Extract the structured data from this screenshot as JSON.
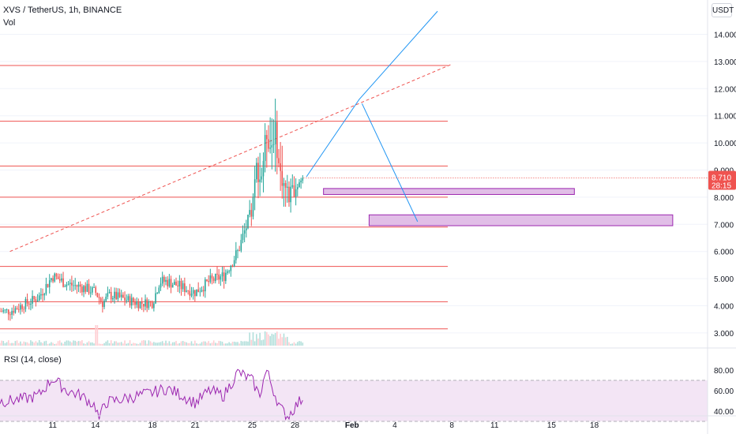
{
  "header": {
    "symbol": "XVS / TetherUS, 1h, BINANCE",
    "volume_label": "Vol",
    "currency_button": "USDT"
  },
  "rsi_title": "RSI (14, close)",
  "price_badge": {
    "price": "8.710",
    "countdown": "28:15",
    "color": "#ef5350"
  },
  "colors": {
    "up": "#26a69a",
    "down": "#ef5350",
    "horizontal_line": "#ef5350",
    "trendline": "#ef5350",
    "projection": "#2196f3",
    "zone_fill": "#e1bee7",
    "zone_border": "#9c27b0",
    "rsi_line": "#9c27b0",
    "rsi_band": "#f3e5f5"
  },
  "chart_data": [
    {
      "type": "candlestick",
      "title": "XVS / TetherUS, 1h, BINANCE",
      "y_axis": {
        "ticks": [
          "14.000",
          "13.000",
          "12.000",
          "11.000",
          "10.000",
          "9.000",
          "8.000",
          "7.000",
          "6.000",
          "5.000",
          "4.000",
          "3.000"
        ],
        "range": [
          2.6,
          14.95
        ]
      },
      "x_axis": {
        "ticks": [
          "11",
          "14",
          "18",
          "21",
          "25",
          "28",
          "Feb",
          "4",
          "8",
          "11",
          "15",
          "18"
        ]
      },
      "last_price": 8.71,
      "anchors": [
        [
          8,
          3.8
        ],
        [
          10,
          4.3
        ],
        [
          11,
          5.1
        ],
        [
          12,
          4.8
        ],
        [
          13,
          4.7
        ],
        [
          14,
          4.5
        ],
        [
          14.5,
          4.1
        ],
        [
          15,
          4.4
        ],
        [
          17,
          4.1
        ],
        [
          18,
          4.1
        ],
        [
          18.5,
          4.9
        ],
        [
          19,
          4.9
        ],
        [
          20,
          4.7
        ],
        [
          21,
          4.5
        ],
        [
          22,
          4.9
        ],
        [
          23,
          5.1
        ],
        [
          24,
          6.0
        ],
        [
          24.5,
          6.8
        ],
        [
          25,
          7.5
        ],
        [
          25.3,
          9.1
        ],
        [
          25.6,
          8.6
        ],
        [
          26,
          10.4
        ],
        [
          26.3,
          9.8
        ],
        [
          26.6,
          10.5
        ],
        [
          26.9,
          9.0
        ],
        [
          27.2,
          8.5
        ],
        [
          27.6,
          8.0
        ],
        [
          28,
          8.4
        ],
        [
          28.6,
          8.71
        ]
      ],
      "horizontal_levels": [
        12.85,
        10.8,
        9.15,
        8.0,
        6.9,
        5.45,
        4.15,
        3.15
      ],
      "trendline": {
        "from": {
          "day": 8,
          "price": 6.0
        },
        "to": {
          "day": 39.0,
          "price": 12.9
        }
      },
      "projection_path": [
        {
          "day": 28.8,
          "price": 8.75
        },
        {
          "day": 32.5,
          "price": 11.6
        },
        {
          "day": 38.0,
          "price": 14.85
        }
      ],
      "projection_down": [
        {
          "day": 32.7,
          "price": 11.45
        },
        {
          "day": 36.6,
          "price": 7.1
        }
      ],
      "zones": [
        {
          "from_day": 30.0,
          "to_day": 47.6,
          "low": 8.1,
          "high": 8.32
        },
        {
          "from_day": 33.2,
          "to_day": 54.5,
          "low": 6.95,
          "high": 7.35
        }
      ]
    },
    {
      "type": "line",
      "title": "RSI (14, close)",
      "y_axis": {
        "ticks": [
          "80.00",
          "60.00",
          "40.00"
        ],
        "range": [
          28,
          90
        ]
      },
      "band": [
        30,
        70
      ],
      "anchors": [
        [
          8,
          50
        ],
        [
          9,
          52
        ],
        [
          10,
          55
        ],
        [
          11,
          72
        ],
        [
          12,
          60
        ],
        [
          13,
          55
        ],
        [
          14,
          45
        ],
        [
          14.3,
          30
        ],
        [
          14.6,
          48
        ],
        [
          16,
          52
        ],
        [
          18,
          58
        ],
        [
          19,
          62
        ],
        [
          20,
          56
        ],
        [
          21,
          48
        ],
        [
          22,
          60
        ],
        [
          23,
          55
        ],
        [
          24,
          78
        ],
        [
          25,
          70
        ],
        [
          25.5,
          55
        ],
        [
          26,
          80
        ],
        [
          26.5,
          60
        ],
        [
          27,
          42
        ],
        [
          27.5,
          35
        ],
        [
          28,
          44
        ],
        [
          28.6,
          54
        ]
      ]
    }
  ]
}
